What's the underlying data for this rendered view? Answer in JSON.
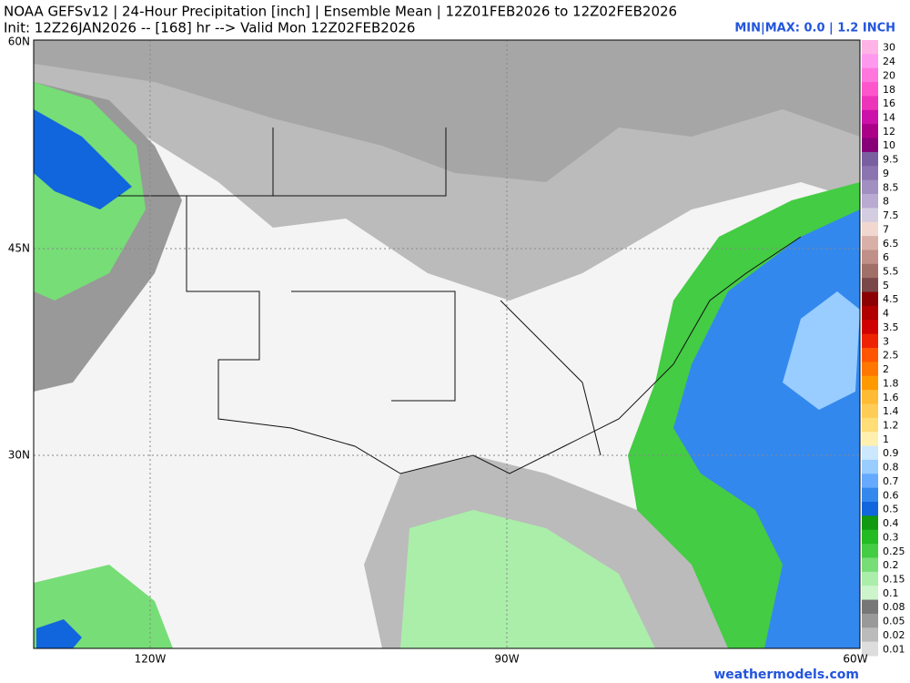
{
  "header": {
    "line1": "NOAA GEFSv12 | 24-Hour Precipitation [inch] | Ensemble Mean | 12Z01FEB2026 to 12Z02FEB2026",
    "line2": "Init: 12Z26JAN2026 -- [168] hr --> Valid Mon 12Z02FEB2026",
    "range": "MIN|MAX: 0.0 | 1.2 INCH"
  },
  "axes": {
    "lat": [
      "60N",
      "45N",
      "30N"
    ],
    "lon": [
      "120W",
      "90W",
      "60W"
    ]
  },
  "colorbar": {
    "items": [
      {
        "label": "30",
        "color": "#ffb3e6"
      },
      {
        "label": "24",
        "color": "#ff99ee"
      },
      {
        "label": "20",
        "color": "#ff77dd"
      },
      {
        "label": "18",
        "color": "#ff55cc"
      },
      {
        "label": "16",
        "color": "#ee33bb"
      },
      {
        "label": "14",
        "color": "#cc11aa"
      },
      {
        "label": "12",
        "color": "#aa0088"
      },
      {
        "label": "10",
        "color": "#880077"
      },
      {
        "label": "9.5",
        "color": "#7a5fa0"
      },
      {
        "label": "9",
        "color": "#8c74b0"
      },
      {
        "label": "8.5",
        "color": "#a08fc0"
      },
      {
        "label": "8",
        "color": "#b8aad0"
      },
      {
        "label": "7.5",
        "color": "#d4cce0"
      },
      {
        "label": "7",
        "color": "#f0d8d0"
      },
      {
        "label": "6.5",
        "color": "#d8b0a8"
      },
      {
        "label": "6",
        "color": "#c09088"
      },
      {
        "label": "5.5",
        "color": "#a07068"
      },
      {
        "label": "5",
        "color": "#7a4848"
      },
      {
        "label": "4.5",
        "color": "#8b0000"
      },
      {
        "label": "4",
        "color": "#b00000"
      },
      {
        "label": "3.5",
        "color": "#d00000"
      },
      {
        "label": "3",
        "color": "#ee2200"
      },
      {
        "label": "2.5",
        "color": "#ff5500"
      },
      {
        "label": "2",
        "color": "#ff7700"
      },
      {
        "label": "1.8",
        "color": "#ff9900"
      },
      {
        "label": "1.6",
        "color": "#ffbb33"
      },
      {
        "label": "1.4",
        "color": "#ffcc55"
      },
      {
        "label": "1.2",
        "color": "#ffdd77"
      },
      {
        "label": "1",
        "color": "#fff0b0"
      },
      {
        "label": "0.9",
        "color": "#cce8ff"
      },
      {
        "label": "0.8",
        "color": "#99ccff"
      },
      {
        "label": "0.7",
        "color": "#66aaff"
      },
      {
        "label": "0.6",
        "color": "#3388ee"
      },
      {
        "label": "0.5",
        "color": "#1166dd"
      },
      {
        "label": "0.4",
        "color": "#119911"
      },
      {
        "label": "0.3",
        "color": "#22bb22"
      },
      {
        "label": "0.25",
        "color": "#44cc44"
      },
      {
        "label": "0.2",
        "color": "#77dd77"
      },
      {
        "label": "0.15",
        "color": "#aaeeaa"
      },
      {
        "label": "0.1",
        "color": "#ccf5cc"
      },
      {
        "label": "0.08",
        "color": "#777777"
      },
      {
        "label": "0.05",
        "color": "#999999"
      },
      {
        "label": "0.02",
        "color": "#bbbbbb"
      },
      {
        "label": "0.01",
        "color": "#dddddd"
      }
    ]
  },
  "footer": {
    "credit": "weathermodels.com"
  }
}
